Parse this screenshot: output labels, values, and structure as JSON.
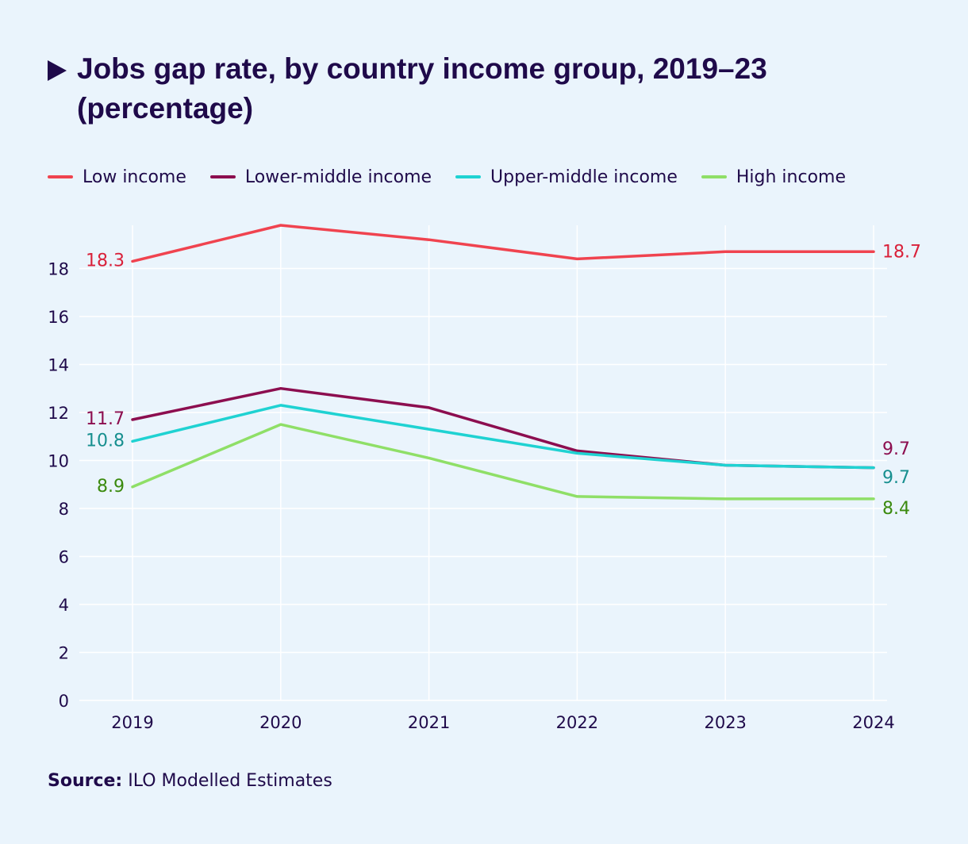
{
  "header": {
    "title": "Jobs gap rate, by country income group, 2019–23 (percentage)"
  },
  "legend": [
    {
      "label": "Low income",
      "color": "#f0434f"
    },
    {
      "label": "Lower-middle income",
      "color": "#8c0e4f"
    },
    {
      "label": "Upper-middle income",
      "color": "#1fd2d2"
    },
    {
      "label": "High income",
      "color": "#8fdf67"
    }
  ],
  "footer": {
    "source_label": "Source:",
    "source_text": "ILO Modelled Estimates"
  },
  "chart_data": {
    "type": "line",
    "title": "Jobs gap rate, by country income group, 2019–23 (percentage)",
    "x": [
      "2019",
      "2020",
      "2021",
      "2022",
      "2023",
      "2024"
    ],
    "ylim": [
      0,
      19.8
    ],
    "yticks": [
      0,
      2,
      4,
      6,
      8,
      10,
      12,
      14,
      16,
      18
    ],
    "grid": true,
    "legend_position": "top-left",
    "series": [
      {
        "name": "Low income",
        "color": "#f0434f",
        "label_color": "#d9213a",
        "values": [
          18.3,
          19.8,
          19.2,
          18.4,
          18.7,
          18.7
        ],
        "start_label": "18.3",
        "end_label": "18.7"
      },
      {
        "name": "Lower-middle income",
        "color": "#8c0e4f",
        "label_color": "#8c0e4f",
        "values": [
          11.7,
          13.0,
          12.2,
          10.4,
          9.8,
          9.7
        ],
        "start_label": "11.7",
        "end_label": "9.7"
      },
      {
        "name": "Upper-middle income",
        "color": "#1fd2d2",
        "label_color": "#178f8f",
        "values": [
          10.8,
          12.3,
          11.3,
          10.3,
          9.8,
          9.7
        ],
        "start_label": "10.8",
        "end_label": "9.7"
      },
      {
        "name": "High income",
        "color": "#8fdf67",
        "label_color": "#3b8a0e",
        "values": [
          8.9,
          11.5,
          10.1,
          8.5,
          8.4,
          8.4
        ],
        "start_label": "8.9",
        "end_label": "8.4"
      }
    ],
    "source": "ILO Modelled Estimates"
  }
}
